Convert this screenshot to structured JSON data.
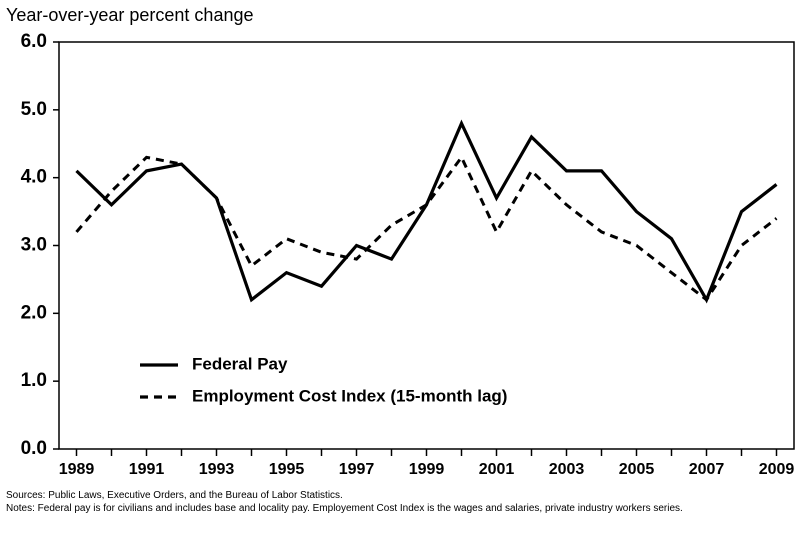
{
  "chart_data": {
    "type": "line",
    "y_axis_label": "Year-over-year percent change",
    "x": [
      1989,
      1990,
      1991,
      1992,
      1993,
      1994,
      1995,
      1996,
      1997,
      1998,
      1999,
      2000,
      2001,
      2002,
      2003,
      2004,
      2005,
      2006,
      2007,
      2008,
      2009
    ],
    "series": [
      {
        "name": "Federal Pay",
        "color": "#000000",
        "dash": "solid",
        "values": [
          4.1,
          3.6,
          4.1,
          4.2,
          3.7,
          2.2,
          2.6,
          2.4,
          3.0,
          2.8,
          3.6,
          4.8,
          3.7,
          4.6,
          4.1,
          4.1,
          3.5,
          3.1,
          2.2,
          3.5,
          3.9
        ]
      },
      {
        "name": "Employment Cost Index (15-month lag)",
        "color": "#000000",
        "dash": "dashed",
        "values": [
          3.2,
          3.8,
          4.3,
          4.2,
          3.7,
          2.7,
          3.1,
          2.9,
          2.8,
          3.3,
          3.6,
          4.3,
          3.2,
          4.1,
          3.6,
          3.2,
          3.0,
          2.6,
          2.2,
          3.0,
          3.4
        ]
      }
    ],
    "xlim": [
      1988.5,
      2009.5
    ],
    "xticks": [
      1989,
      1991,
      1993,
      1995,
      1997,
      1999,
      2001,
      2003,
      2005,
      2007,
      2009
    ],
    "xminor_ticks": [
      1990,
      1992,
      1994,
      1996,
      1998,
      2000,
      2002,
      2004,
      2006,
      2008
    ],
    "ylim": [
      0,
      6
    ],
    "yticks": [
      {
        "value": 0,
        "label": "0.0"
      },
      {
        "value": 1,
        "label": "1.0"
      },
      {
        "value": 2,
        "label": "2.0"
      },
      {
        "value": 3,
        "label": "3.0"
      },
      {
        "value": 4,
        "label": "4.0"
      },
      {
        "value": 5,
        "label": "5.0"
      },
      {
        "value": 6,
        "label": "6.0"
      }
    ],
    "grid": false,
    "legend_position": "lower left",
    "sources": "Sources: Public Laws, Executive Orders, and the Bureau of Labor Statistics.",
    "notes": "Notes:  Federal pay is for civilians and includes base and locality pay. Employement Cost Index is the wages and salaries, private industry workers series."
  }
}
